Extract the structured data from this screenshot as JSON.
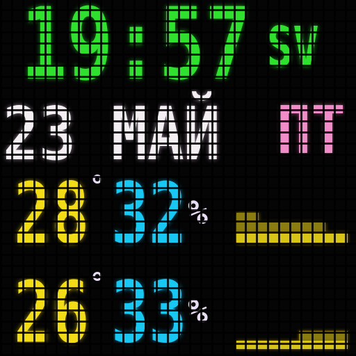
{
  "clock": {
    "time": "19:57",
    "suffix": "SV"
  },
  "date": {
    "day_month": "23 МАЙ",
    "weekday": "ПТ"
  },
  "readings": [
    {
      "temperature": "28",
      "temperature_unit": "°",
      "humidity": "32",
      "humidity_unit": "%"
    },
    {
      "temperature": "26",
      "temperature_unit": "°",
      "humidity": "33",
      "humidity_unit": "%"
    }
  ]
}
